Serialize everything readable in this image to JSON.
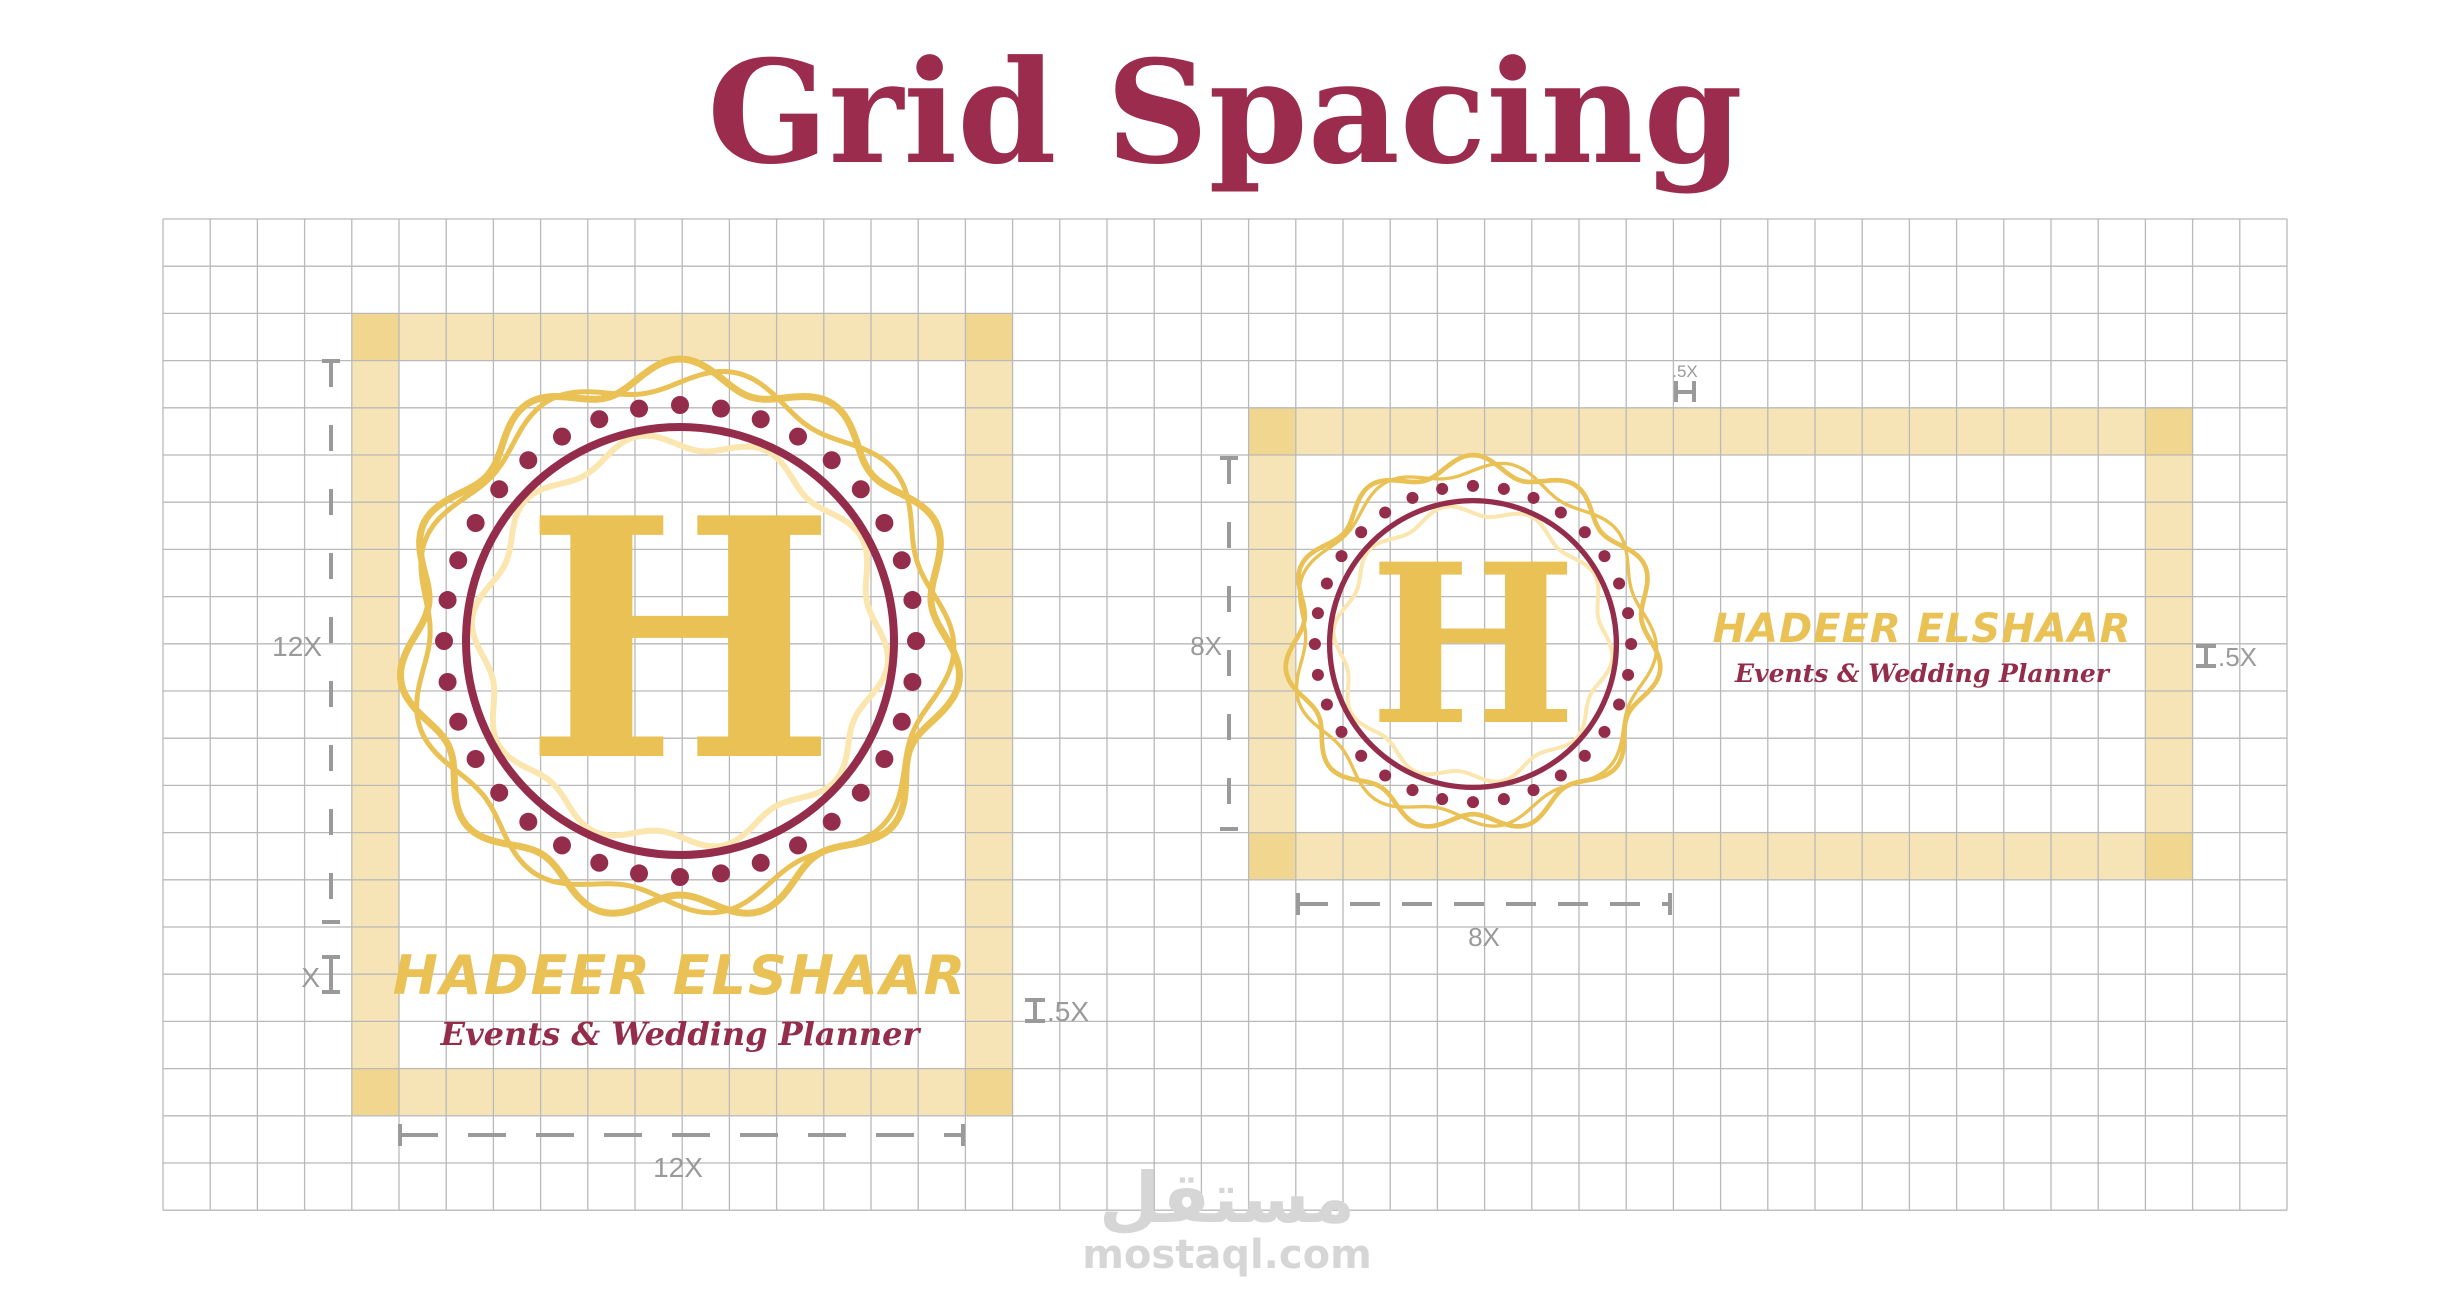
{
  "title": "Grid Spacing",
  "colors": {
    "title": "#9b2c4e",
    "gold": "#e9c155",
    "gold_light": "#fbe6b0",
    "maroon": "#942d4c",
    "band": "#f6e4b6",
    "band_corner": "#f1d690",
    "grid_line": "#b9b9b9",
    "measure": "#9a9a9a",
    "watermark": "#d6d6d6"
  },
  "grid": {
    "columns": 45,
    "rows": 21
  },
  "logo": {
    "monogram": "H",
    "name": "HADEER ELSHAAR",
    "tagline": "Events & Wedding Planner"
  },
  "vertical_layout": {
    "height_label": "12X",
    "gap_label": "X",
    "width_label": "12X",
    "margin_label": ".5X"
  },
  "horizontal_layout": {
    "height_label": "8X",
    "width_label": "8X",
    "top_margin_label": ".5X",
    "right_margin_label": ".5X"
  },
  "watermark": {
    "arabic": "مستقل",
    "url": "mostaql.com"
  }
}
